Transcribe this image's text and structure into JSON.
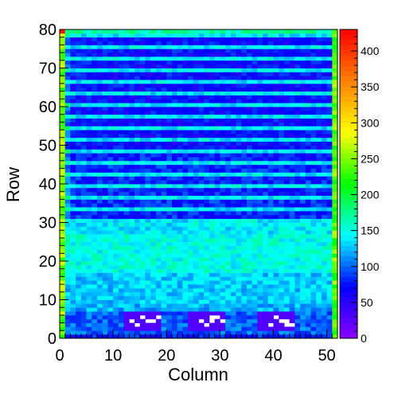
{
  "chart_data": {
    "type": "heatmap",
    "title": "",
    "xlabel": "Column",
    "ylabel": "Row",
    "xlim": [
      0,
      52
    ],
    "ylim": [
      0,
      80
    ],
    "zlim": [
      0,
      430
    ],
    "x_ticks": [
      "0",
      "10",
      "20",
      "30",
      "40",
      "50"
    ],
    "y_ticks": [
      "0",
      "10",
      "20",
      "30",
      "40",
      "50",
      "60",
      "70",
      "80"
    ],
    "z_ticks": [
      "0",
      "50",
      "100",
      "150",
      "200",
      "250",
      "300",
      "350",
      "400"
    ],
    "n_columns": 52,
    "n_rows": 80,
    "row_profile": [
      {
        "rows": [
          0,
          1
        ],
        "value": 75
      },
      {
        "rows": [
          1,
          7
        ],
        "value": 100
      },
      {
        "rows": [
          7,
          9
        ],
        "value": 120
      },
      {
        "rows": [
          9,
          17
        ],
        "value": 130
      },
      {
        "rows": [
          17,
          27
        ],
        "value": 150
      },
      {
        "rows": [
          27,
          31
        ],
        "value": 140
      },
      {
        "rows": [
          31,
          48
        ],
        "value": 80
      },
      {
        "rows": [
          48,
          79
        ],
        "value": 70
      },
      {
        "rows": [
          79,
          80
        ],
        "value": 170
      }
    ],
    "bright_stripe_rows": [
      29,
      33,
      36,
      39,
      42,
      45,
      48,
      51,
      54,
      57,
      60,
      63,
      66,
      69,
      72,
      75,
      78
    ],
    "stripe_value": 140,
    "edge_columns": [
      {
        "column": 0,
        "value": 250
      },
      {
        "column": 51,
        "value": 240
      }
    ],
    "low_regions": [
      {
        "columns": [
          12,
          19
        ],
        "rows": [
          2,
          7
        ],
        "value": 30
      },
      {
        "columns": [
          24,
          31
        ],
        "rows": [
          2,
          7
        ],
        "value": 30
      },
      {
        "columns": [
          37,
          44
        ],
        "rows": [
          2,
          7
        ],
        "value": 30
      }
    ],
    "empty_cells": [
      [
        13,
        4
      ],
      [
        15,
        5
      ],
      [
        16,
        4
      ],
      [
        17,
        4
      ],
      [
        14,
        3
      ],
      [
        18,
        5
      ],
      [
        26,
        4
      ],
      [
        27,
        3
      ],
      [
        28,
        4
      ],
      [
        29,
        5
      ],
      [
        30,
        4
      ],
      [
        28,
        5
      ],
      [
        39,
        3
      ],
      [
        40,
        5
      ],
      [
        41,
        4
      ],
      [
        42,
        3
      ],
      [
        43,
        3
      ],
      [
        42,
        4
      ]
    ],
    "hot_cell": {
      "column": 0,
      "row": 79,
      "value": 420
    },
    "colormap": [
      "#8b00ff",
      "#0000ff",
      "#00ffff",
      "#00ff00",
      "#ffff00",
      "#ff8000",
      "#ff0000"
    ]
  }
}
